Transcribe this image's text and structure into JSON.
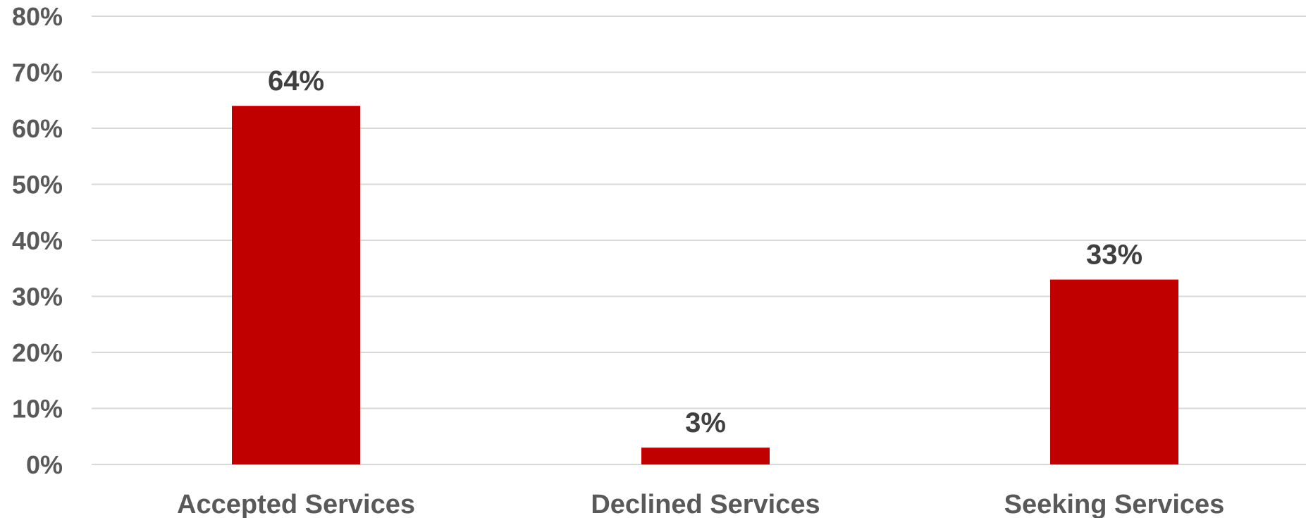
{
  "chart_data": {
    "type": "bar",
    "categories": [
      "Accepted Services",
      "Declined Services",
      "Seeking Services"
    ],
    "values": [
      64,
      3,
      33
    ],
    "data_labels": [
      "64%",
      "3%",
      "33%"
    ],
    "title": "",
    "xlabel": "",
    "ylabel": "",
    "ylim": [
      0,
      80
    ],
    "y_ticks": [
      0,
      10,
      20,
      30,
      40,
      50,
      60,
      70,
      80
    ],
    "y_tick_labels": [
      "0%",
      "10%",
      "20%",
      "30%",
      "40%",
      "50%",
      "60%",
      "70%",
      "80%"
    ],
    "grid": true,
    "legend": "none",
    "bar_color": "#c00000",
    "gridline_color": "#d9d9d9",
    "axis_text_color": "#595959",
    "data_label_color": "#404040"
  }
}
